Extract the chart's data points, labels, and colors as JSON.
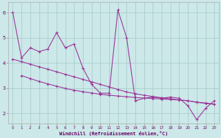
{
  "xlabel": "Windchill (Refroidissement éolien,°C)",
  "bg_color": "#cce8e8",
  "grid_color": "#aacccc",
  "line_color": "#993399",
  "xlim": [
    -0.5,
    23.5
  ],
  "ylim": [
    1.6,
    6.4
  ],
  "xticks": [
    0,
    1,
    2,
    3,
    4,
    5,
    6,
    7,
    8,
    9,
    10,
    11,
    12,
    13,
    14,
    15,
    16,
    17,
    18,
    19,
    20,
    21,
    22,
    23
  ],
  "yticks": [
    2,
    3,
    4,
    5,
    6
  ],
  "main_x": [
    0,
    1,
    2,
    3,
    4,
    5,
    6,
    7,
    8,
    9,
    10,
    11,
    12,
    13,
    14,
    15,
    16,
    17,
    18,
    19,
    20,
    21,
    22,
    23
  ],
  "main_y": [
    6.0,
    4.2,
    4.6,
    4.45,
    4.55,
    5.2,
    4.6,
    4.75,
    3.8,
    3.15,
    2.8,
    2.8,
    6.1,
    5.0,
    2.5,
    2.6,
    2.65,
    2.6,
    2.65,
    2.6,
    2.3,
    1.75,
    2.2,
    2.5
  ],
  "trend1_x": [
    0,
    1,
    2,
    3,
    4,
    5,
    6,
    7,
    8,
    9,
    10,
    11,
    12,
    13,
    14,
    15,
    16,
    17,
    18,
    19,
    20,
    21,
    22,
    23
  ],
  "trend1_y": [
    4.15,
    4.05,
    3.95,
    3.85,
    3.75,
    3.65,
    3.55,
    3.45,
    3.35,
    3.25,
    3.15,
    3.05,
    2.95,
    2.85,
    2.78,
    2.72,
    2.67,
    2.62,
    2.58,
    2.54,
    2.5,
    2.44,
    2.4,
    2.36
  ],
  "trend2_x": [
    1,
    2,
    3,
    4,
    5,
    6,
    7,
    8,
    9,
    10,
    11,
    12,
    13,
    14,
    15,
    16,
    17,
    18,
    19,
    20,
    21,
    22,
    23
  ],
  "trend2_y": [
    3.5,
    3.38,
    3.27,
    3.17,
    3.08,
    2.99,
    2.92,
    2.86,
    2.81,
    2.76,
    2.72,
    2.69,
    2.66,
    2.63,
    2.61,
    2.59,
    2.57,
    2.55,
    2.53,
    2.5,
    2.45,
    2.41,
    2.37
  ]
}
